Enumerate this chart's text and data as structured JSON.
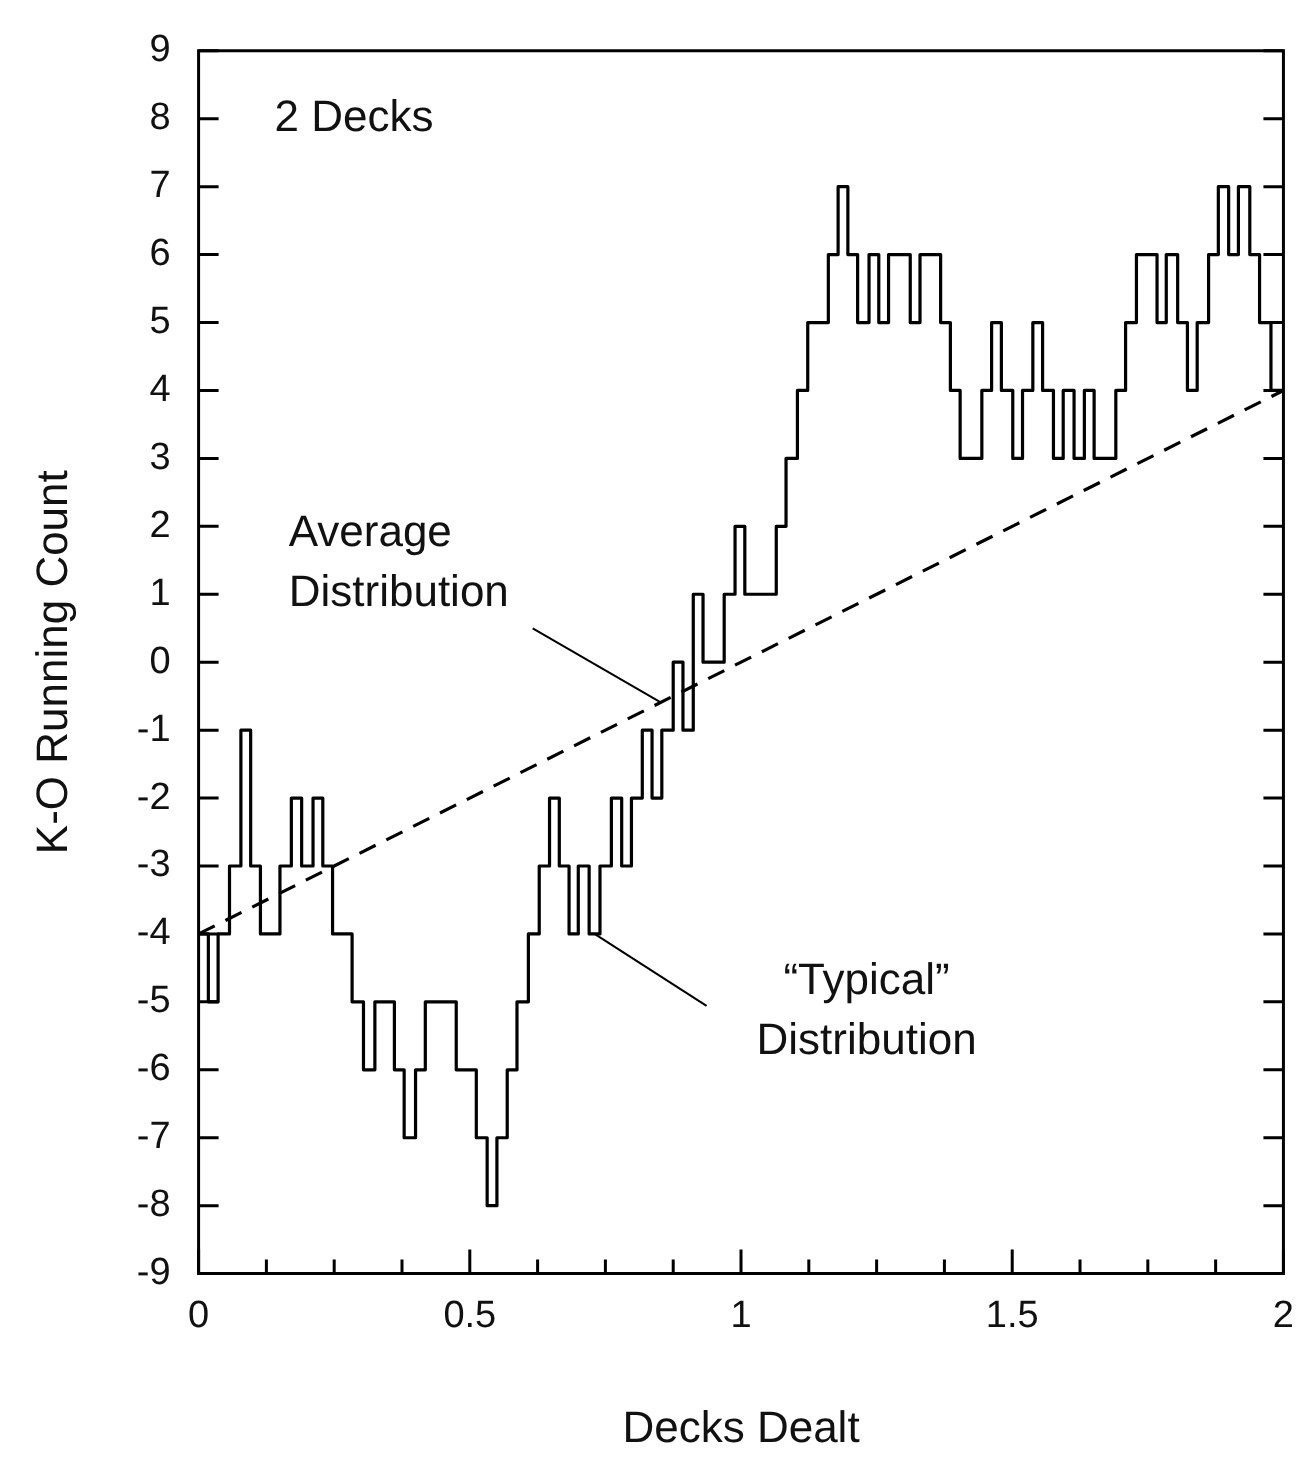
{
  "chart_data": {
    "type": "step",
    "xlabel": "Decks Dealt",
    "ylabel": "K-O Running Count",
    "marker": "none",
    "xlim": [
      0,
      2
    ],
    "ylim": [
      -9,
      9
    ],
    "xticks": [
      0,
      {
        "value": 0.125,
        "label": null
      },
      {
        "value": 0.25,
        "label": null
      },
      {
        "value": 0.375,
        "label": null
      },
      {
        "value": 0.5,
        "label": "0.5"
      },
      {
        "value": 0.625,
        "label": null
      },
      {
        "value": 0.75,
        "label": null
      },
      {
        "value": 0.875,
        "label": null
      },
      1,
      {
        "value": 1.125,
        "label": null
      },
      {
        "value": 1.25,
        "label": null
      },
      {
        "value": 1.375,
        "label": null
      },
      {
        "value": 1.5,
        "label": "1.5"
      },
      {
        "value": 1.625,
        "label": null
      },
      {
        "value": 1.75,
        "label": null
      },
      {
        "value": 1.875,
        "label": null
      },
      2
    ],
    "yticks": [
      -9,
      -8,
      -7,
      -6,
      -5,
      -4,
      -3,
      -2,
      -1,
      0,
      1,
      2,
      3,
      4,
      5,
      6,
      7,
      8,
      9
    ],
    "series": [
      {
        "color": "#000000",
        "line_style": "solid",
        "x": [
          0,
          0.018,
          0.036,
          0.057,
          0.078,
          0.096,
          0.114,
          0.15,
          0.171,
          0.19,
          0.211,
          0.229,
          0.247,
          0.283,
          0.304,
          0.325,
          0.361,
          0.379,
          0.4,
          0.418,
          0.475,
          0.512,
          0.532,
          0.55,
          0.569,
          0.587,
          0.608,
          0.628,
          0.647,
          0.665,
          0.683,
          0.7,
          0.72,
          0.74,
          0.761,
          0.78,
          0.798,
          0.818,
          0.836,
          0.854,
          0.875,
          0.893,
          0.912,
          0.93,
          0.969,
          0.989,
          1.007,
          1.065,
          1.083,
          1.104,
          1.123,
          1.161,
          1.179,
          1.197,
          1.215,
          1.236,
          1.254,
          1.272,
          1.312,
          1.33,
          1.368,
          1.386,
          1.404,
          1.444,
          1.462,
          1.48,
          1.501,
          1.519,
          1.538,
          1.556,
          1.576,
          1.594,
          1.614,
          1.633,
          1.651,
          1.691,
          1.709,
          1.729,
          1.767,
          1.784,
          1.805,
          1.823,
          1.841,
          1.862,
          1.88,
          1.899,
          1.917,
          1.938,
          1.956,
          1.977,
          2
        ],
        "values": [
          -4,
          -5,
          -4,
          -3,
          -1,
          -3,
          -4,
          -3,
          -2,
          -3,
          -2,
          -3,
          -4,
          -5,
          -6,
          -5,
          -6,
          -7,
          -6,
          -5,
          -6,
          -7,
          -8,
          -7,
          -6,
          -5,
          -4,
          -3,
          -2,
          -3,
          -4,
          -3,
          -4,
          -3,
          -2,
          -3,
          -2,
          -1,
          -2,
          -1,
          0,
          -1,
          1,
          0,
          1,
          2,
          1,
          2,
          3,
          4,
          5,
          6,
          7,
          6,
          5,
          6,
          5,
          6,
          5,
          6,
          5,
          4,
          3,
          4,
          5,
          4,
          3,
          4,
          5,
          4,
          3,
          4,
          3,
          4,
          3,
          4,
          5,
          6,
          5,
          6,
          5,
          4,
          5,
          6,
          7,
          6,
          7,
          6,
          5,
          4,
          4
        ]
      },
      {
        "type": "line",
        "color": "#000000",
        "line_style": "dashed",
        "x": [
          0,
          2
        ],
        "values": [
          -4,
          4
        ]
      }
    ],
    "annotations": [
      "2 Decks",
      {
        "text": "Average Distribution",
        "x": 0.852,
        "y": -0.59
      },
      {
        "text": "“Typical” Distribution",
        "x": 0.73,
        "y": -4
      }
    ]
  }
}
